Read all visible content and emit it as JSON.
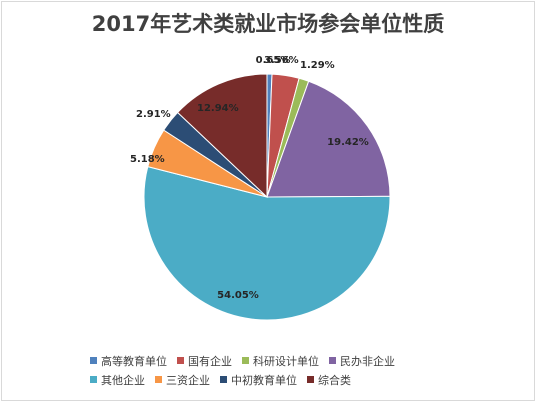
{
  "chart_data": {
    "type": "pie",
    "title": "2017年艺术类就业市场参会单位性质",
    "slices": [
      {
        "label": "高等教育单位",
        "value": 0.65,
        "display": "0.65%",
        "color": "#4f81bd"
      },
      {
        "label": "国有企业",
        "value": 3.56,
        "display": "3.56%",
        "color": "#c0504d"
      },
      {
        "label": "科研设计单位",
        "value": 1.29,
        "display": "1.29%",
        "color": "#9bbb59"
      },
      {
        "label": "民办非企业",
        "value": 19.42,
        "display": "19.42%",
        "color": "#8064a2"
      },
      {
        "label": "其他企业",
        "value": 54.05,
        "display": "54.05%",
        "color": "#4bacc6"
      },
      {
        "label": "三资企业",
        "value": 5.18,
        "display": "5.18%",
        "color": "#f79646"
      },
      {
        "label": "中初教育单位",
        "value": 2.91,
        "display": "2.91%",
        "color": "#2c4d75"
      },
      {
        "label": "综合类",
        "value": 12.94,
        "display": "12.94%",
        "color": "#772c2a"
      }
    ],
    "legend_position": "bottom"
  }
}
